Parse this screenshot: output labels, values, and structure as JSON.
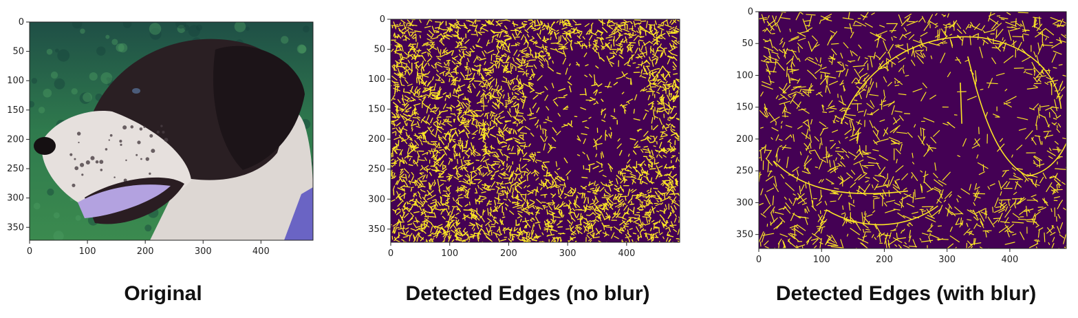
{
  "panels": [
    {
      "id": "original",
      "caption": "Original",
      "x_ticks": [
        "0",
        "100",
        "200",
        "300",
        "400"
      ],
      "y_ticks": [
        "0",
        "50",
        "100",
        "150",
        "200",
        "250",
        "300",
        "350"
      ],
      "image_kind": "photo"
    },
    {
      "id": "edges-no-blur",
      "caption": "Detected Edges (no blur)",
      "x_ticks": [
        "0",
        "100",
        "200",
        "300",
        "400"
      ],
      "y_ticks": [
        "0",
        "50",
        "100",
        "150",
        "200",
        "250",
        "300",
        "350"
      ],
      "image_kind": "edges-dense"
    },
    {
      "id": "edges-with-blur",
      "caption": "Detected Edges (with blur)",
      "x_ticks": [
        "0",
        "100",
        "200",
        "300",
        "400"
      ],
      "y_ticks": [
        "0",
        "50",
        "100",
        "150",
        "200",
        "250",
        "300",
        "350"
      ],
      "image_kind": "edges-sparse"
    }
  ],
  "colors": {
    "edge_background": "#440154",
    "edge_foreground": "#fde725",
    "grass": "#2f7a4d",
    "fur_dark": "#2a1f23",
    "fur_white": "#ddd7d3",
    "collar": "#6a64c4",
    "tongue": "#b3a2e0"
  }
}
